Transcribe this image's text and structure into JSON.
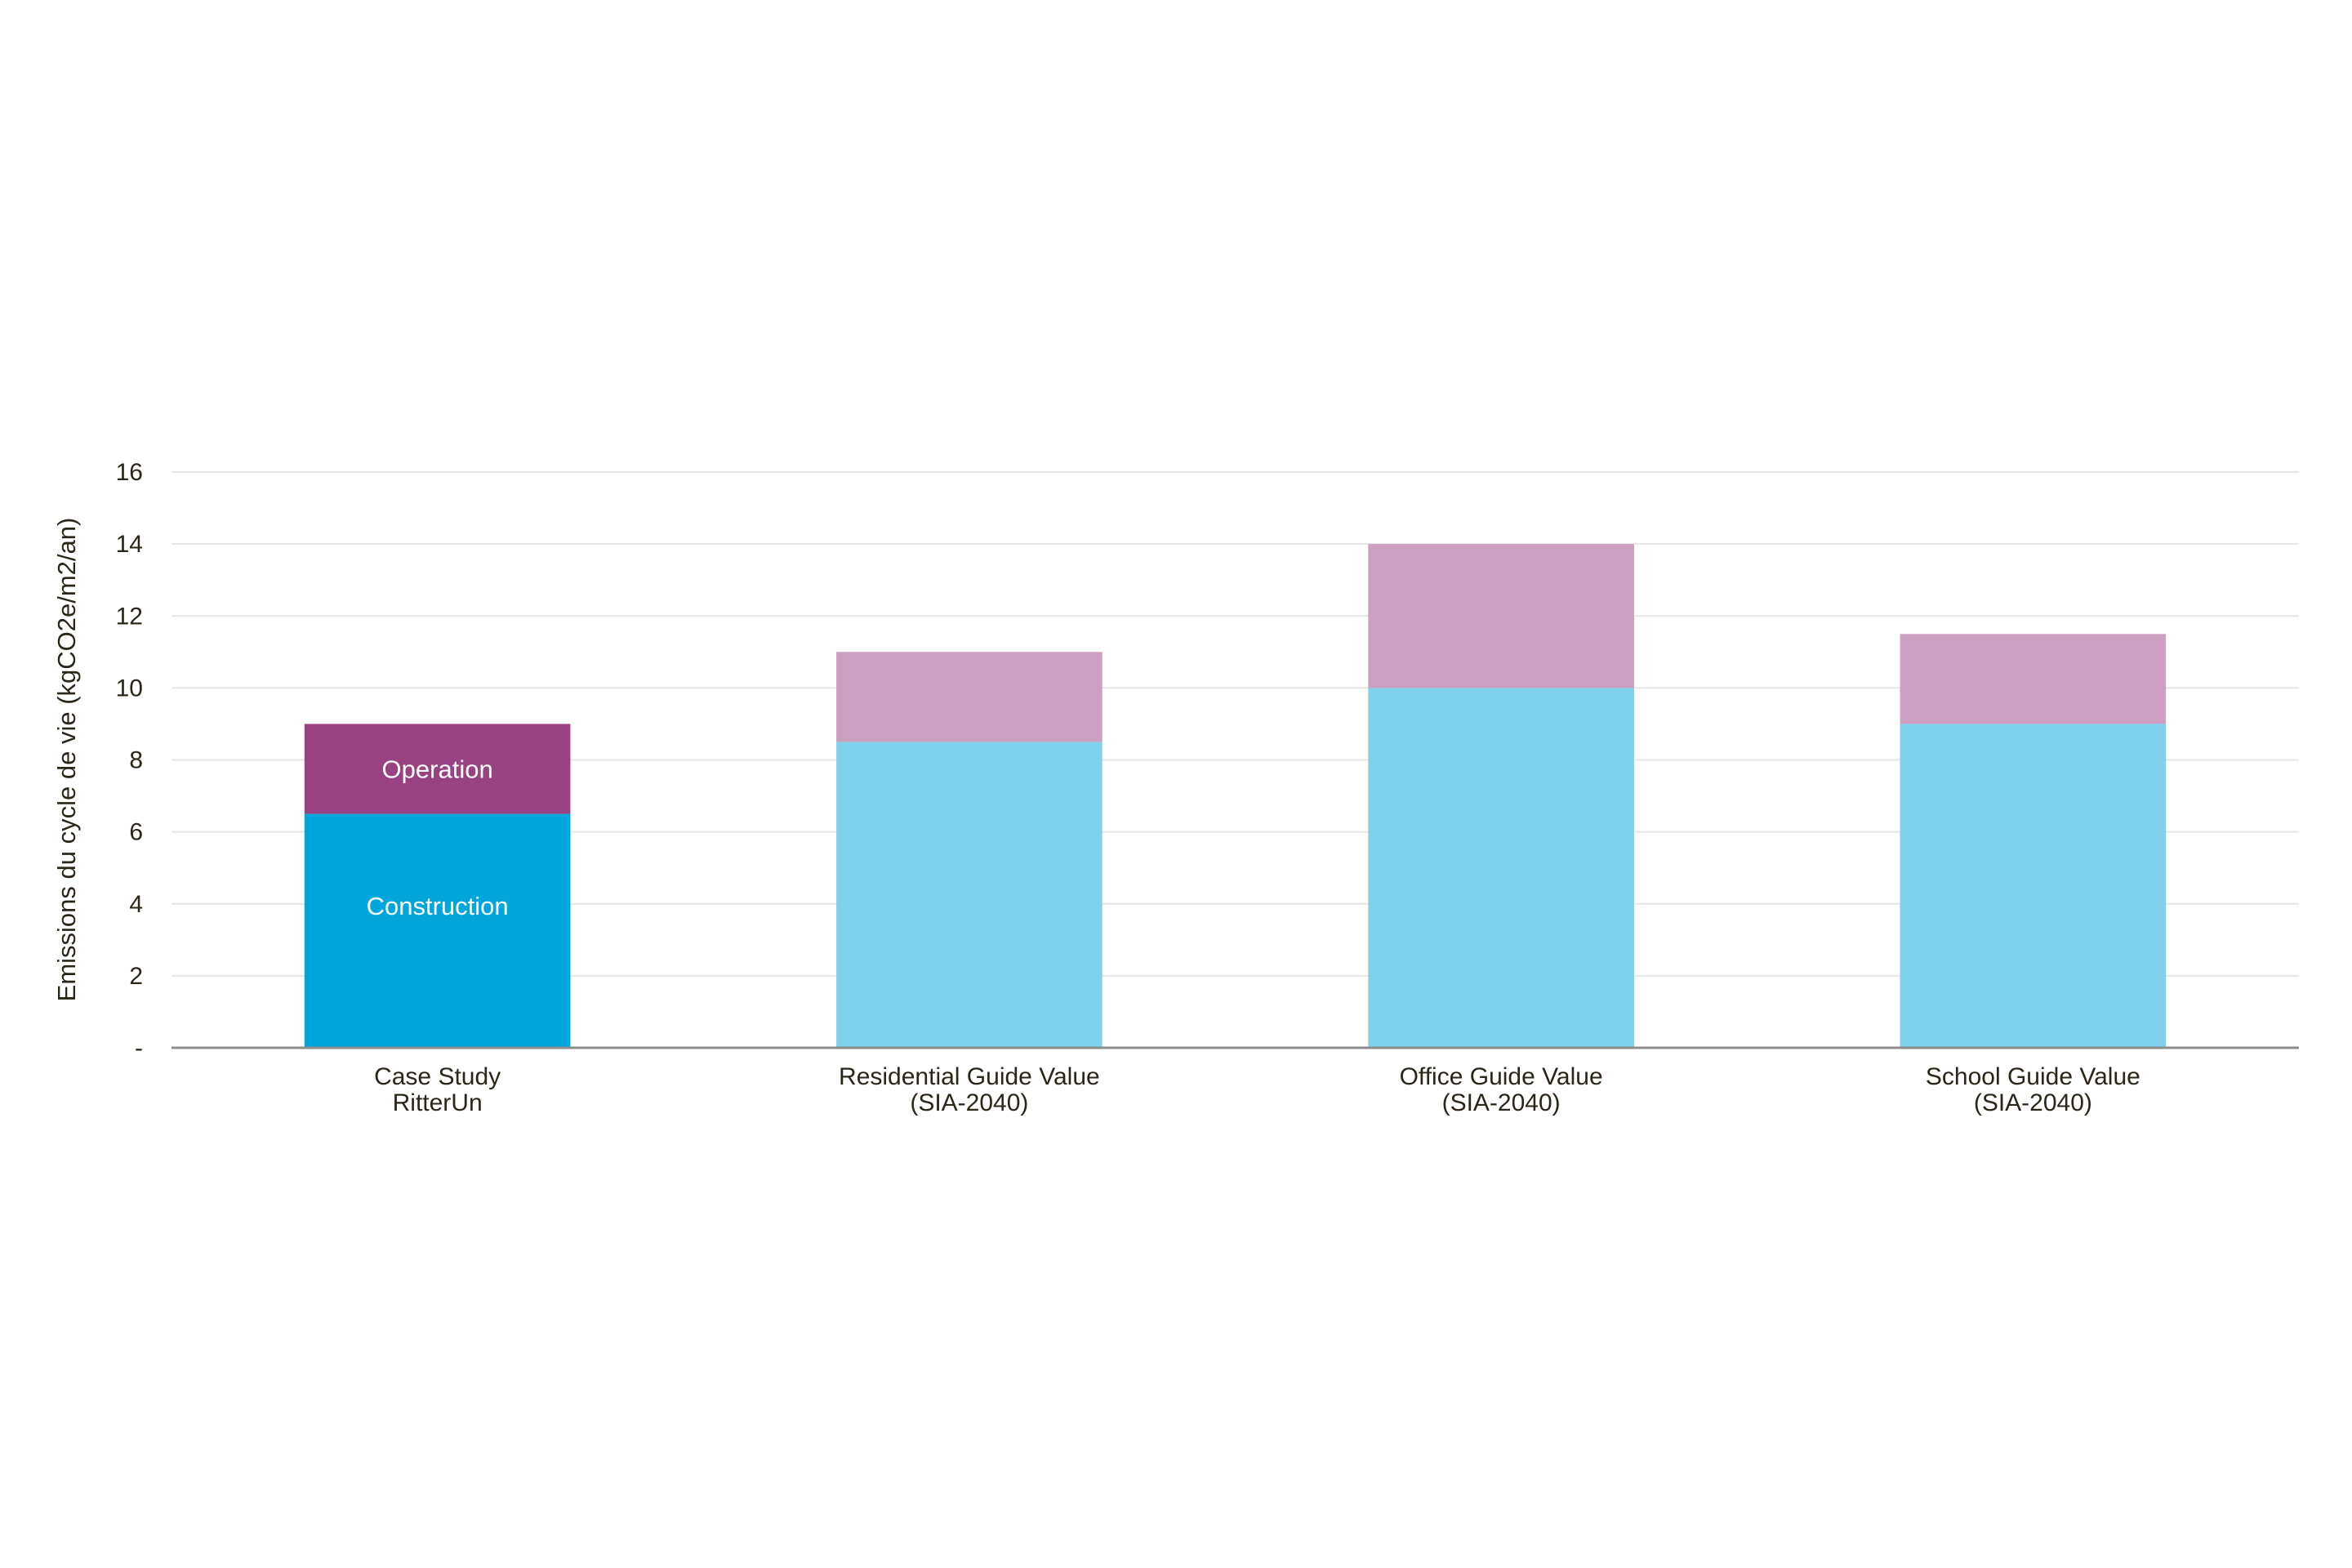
{
  "chart_data": {
    "type": "bar",
    "stacked": true,
    "title": "",
    "xlabel": "",
    "ylabel": "Emissions du cycle de vie  (kgCO2e/m2/an)",
    "ylim": [
      0,
      16
    ],
    "yticks": [
      0,
      2,
      4,
      6,
      8,
      10,
      12,
      14,
      16
    ],
    "ytick_labels": [
      "-",
      "2",
      "4",
      "6",
      "8",
      "10",
      "12",
      "14",
      "16"
    ],
    "grid": true,
    "legend": "none",
    "categories": [
      [
        "Case Study",
        "RitterUn"
      ],
      [
        "Residential Guide Value",
        "(SIA-2040)"
      ],
      [
        "Office Guide Value",
        "(SIA-2040)"
      ],
      [
        "School Guide Value",
        "(SIA-2040)"
      ]
    ],
    "series": [
      {
        "name": "Construction",
        "values": [
          6.5,
          8.5,
          10,
          9
        ]
      },
      {
        "name": "Operation",
        "values": [
          2.5,
          2.5,
          4,
          2.5
        ]
      }
    ],
    "colors": {
      "construction_case": "#00A6DC",
      "operation_case": "#994283",
      "construction_guide": "#80D1EC",
      "operation_guide": "#CDA0C1",
      "grid": "#E6E6E6",
      "axis": "#8C8C8C"
    }
  }
}
